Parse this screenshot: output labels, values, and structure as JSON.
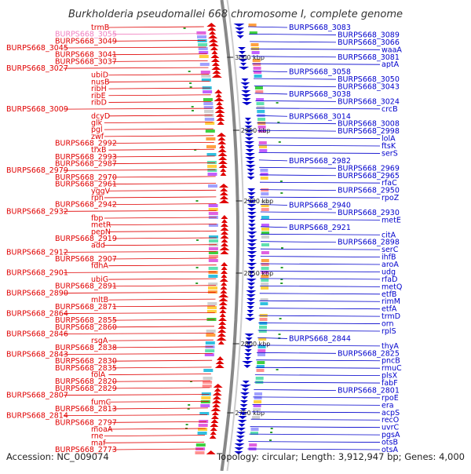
{
  "title": "Burkholderia pseudomallei 668 chromosome I, complete genome",
  "footer": {
    "accession": "Accession: NC_009074",
    "summary": "Topology: circular; Length: 3,912,947 bp; Genes: 4,000"
  },
  "colors": {
    "forward": "#e00000",
    "reverse": "#0000cc",
    "highlight": "#f080c0",
    "backbone": "#888888"
  },
  "ticks": [
    "3000 kbp",
    "2950 kbp",
    "2900 kbp",
    "2850 kbp",
    "2800 kbp",
    "2750 kbp"
  ],
  "left_labels": [
    {
      "t": "trmB"
    },
    {
      "t": "BURPS668_3055",
      "h": true
    },
    {
      "t": "BURPS668_3049"
    },
    {
      "t": "BURPS668_3045"
    },
    {
      "t": "BURPS668_3041"
    },
    {
      "t": "BURPS668_3037"
    },
    {
      "t": "BURPS668_3027"
    },
    {
      "t": "ubiD"
    },
    {
      "t": "nusB"
    },
    {
      "t": "ribH"
    },
    {
      "t": "ribE"
    },
    {
      "t": "ribD"
    },
    {
      "t": "BURPS668_3009"
    },
    {
      "t": "dcyD"
    },
    {
      "t": "glk"
    },
    {
      "t": "pgl"
    },
    {
      "t": "zwf"
    },
    {
      "t": "BURPS668_2992"
    },
    {
      "t": "trxB"
    },
    {
      "t": "BURPS668_2993"
    },
    {
      "t": "BURPS668_2987"
    },
    {
      "t": "BURPS668_2979"
    },
    {
      "t": "BURPS668_2970"
    },
    {
      "t": "BURPS668_2961"
    },
    {
      "t": "yggV"
    },
    {
      "t": "rph"
    },
    {
      "t": "BURPS668_2942"
    },
    {
      "t": "BURPS668_2932"
    },
    {
      "t": "fbp"
    },
    {
      "t": "metR"
    },
    {
      "t": "pepN"
    },
    {
      "t": "BURPS668_2919"
    },
    {
      "t": "add"
    },
    {
      "t": "BURPS668_2912"
    },
    {
      "t": "BURPS668_2907"
    },
    {
      "t": "fdhA"
    },
    {
      "t": "BURPS668_2901"
    },
    {
      "t": "ubiG"
    },
    {
      "t": "BURPS668_2891"
    },
    {
      "t": "BURPS668_2890"
    },
    {
      "t": "mltB"
    },
    {
      "t": "BURPS668_2871"
    },
    {
      "t": "BURPS668_2864"
    },
    {
      "t": "BURPS668_2855"
    },
    {
      "t": "BURPS668_2860"
    },
    {
      "t": "BURPS668_2846"
    },
    {
      "t": "rsgA"
    },
    {
      "t": "BURPS668_2838"
    },
    {
      "t": "BURPS668_2843"
    },
    {
      "t": "BURPS668_2830"
    },
    {
      "t": "BURPS668_2835"
    },
    {
      "t": "folA"
    },
    {
      "t": "BURPS668_2820"
    },
    {
      "t": "BURPS668_2829"
    },
    {
      "t": "BURPS668_2807"
    },
    {
      "t": "fumC"
    },
    {
      "t": "BURPS668_2813"
    },
    {
      "t": "BURPS668_2814"
    },
    {
      "t": "BURPS668_2797"
    },
    {
      "t": "moaA"
    },
    {
      "t": "rne"
    },
    {
      "t": "maf"
    },
    {
      "t": "BURPS668_2773"
    }
  ],
  "right_labels": [
    {
      "t": "BURPS668_3083"
    },
    {
      "t": "BURPS668_3089"
    },
    {
      "t": "BURPS668_3066"
    },
    {
      "t": "waaA"
    },
    {
      "t": "BURPS668_3081"
    },
    {
      "t": "aptA"
    },
    {
      "t": "BURPS668_3058"
    },
    {
      "t": "BURPS668_3050"
    },
    {
      "t": "BURPS668_3043"
    },
    {
      "t": "BURPS668_3038"
    },
    {
      "t": "BURPS668_3024"
    },
    {
      "t": "crcB"
    },
    {
      "t": "BURPS668_3014"
    },
    {
      "t": "BURPS668_3008"
    },
    {
      "t": "BURPS668_2998"
    },
    {
      "t": "lolA"
    },
    {
      "t": "ftsK"
    },
    {
      "t": "serS"
    },
    {
      "t": "BURPS668_2982"
    },
    {
      "t": "BURPS668_2969"
    },
    {
      "t": "BURPS668_2965"
    },
    {
      "t": "rfaC"
    },
    {
      "t": "BURPS668_2950"
    },
    {
      "t": "rpoZ"
    },
    {
      "t": "BURPS668_2940"
    },
    {
      "t": "BURPS668_2930"
    },
    {
      "t": "metE"
    },
    {
      "t": "BURPS668_2921"
    },
    {
      "t": "citA"
    },
    {
      "t": "BURPS668_2898"
    },
    {
      "t": "serC"
    },
    {
      "t": "ihfB"
    },
    {
      "t": "aroA"
    },
    {
      "t": "udg"
    },
    {
      "t": "rfaD"
    },
    {
      "t": "metQ"
    },
    {
      "t": "etfB"
    },
    {
      "t": "rimM"
    },
    {
      "t": "etfA"
    },
    {
      "t": "trmD"
    },
    {
      "t": "orn"
    },
    {
      "t": "rplS"
    },
    {
      "t": "BURPS668_2844"
    },
    {
      "t": "thyA"
    },
    {
      "t": "BURPS668_2825"
    },
    {
      "t": "pncB"
    },
    {
      "t": "rmuC"
    },
    {
      "t": "plsX"
    },
    {
      "t": "fabF"
    },
    {
      "t": "BURPS668_2801"
    },
    {
      "t": "rpoE"
    },
    {
      "t": "era"
    },
    {
      "t": "acpS"
    },
    {
      "t": "recO"
    },
    {
      "t": "uvrC"
    },
    {
      "t": "pgsA"
    },
    {
      "t": "otsB"
    },
    {
      "t": "otsA"
    }
  ]
}
